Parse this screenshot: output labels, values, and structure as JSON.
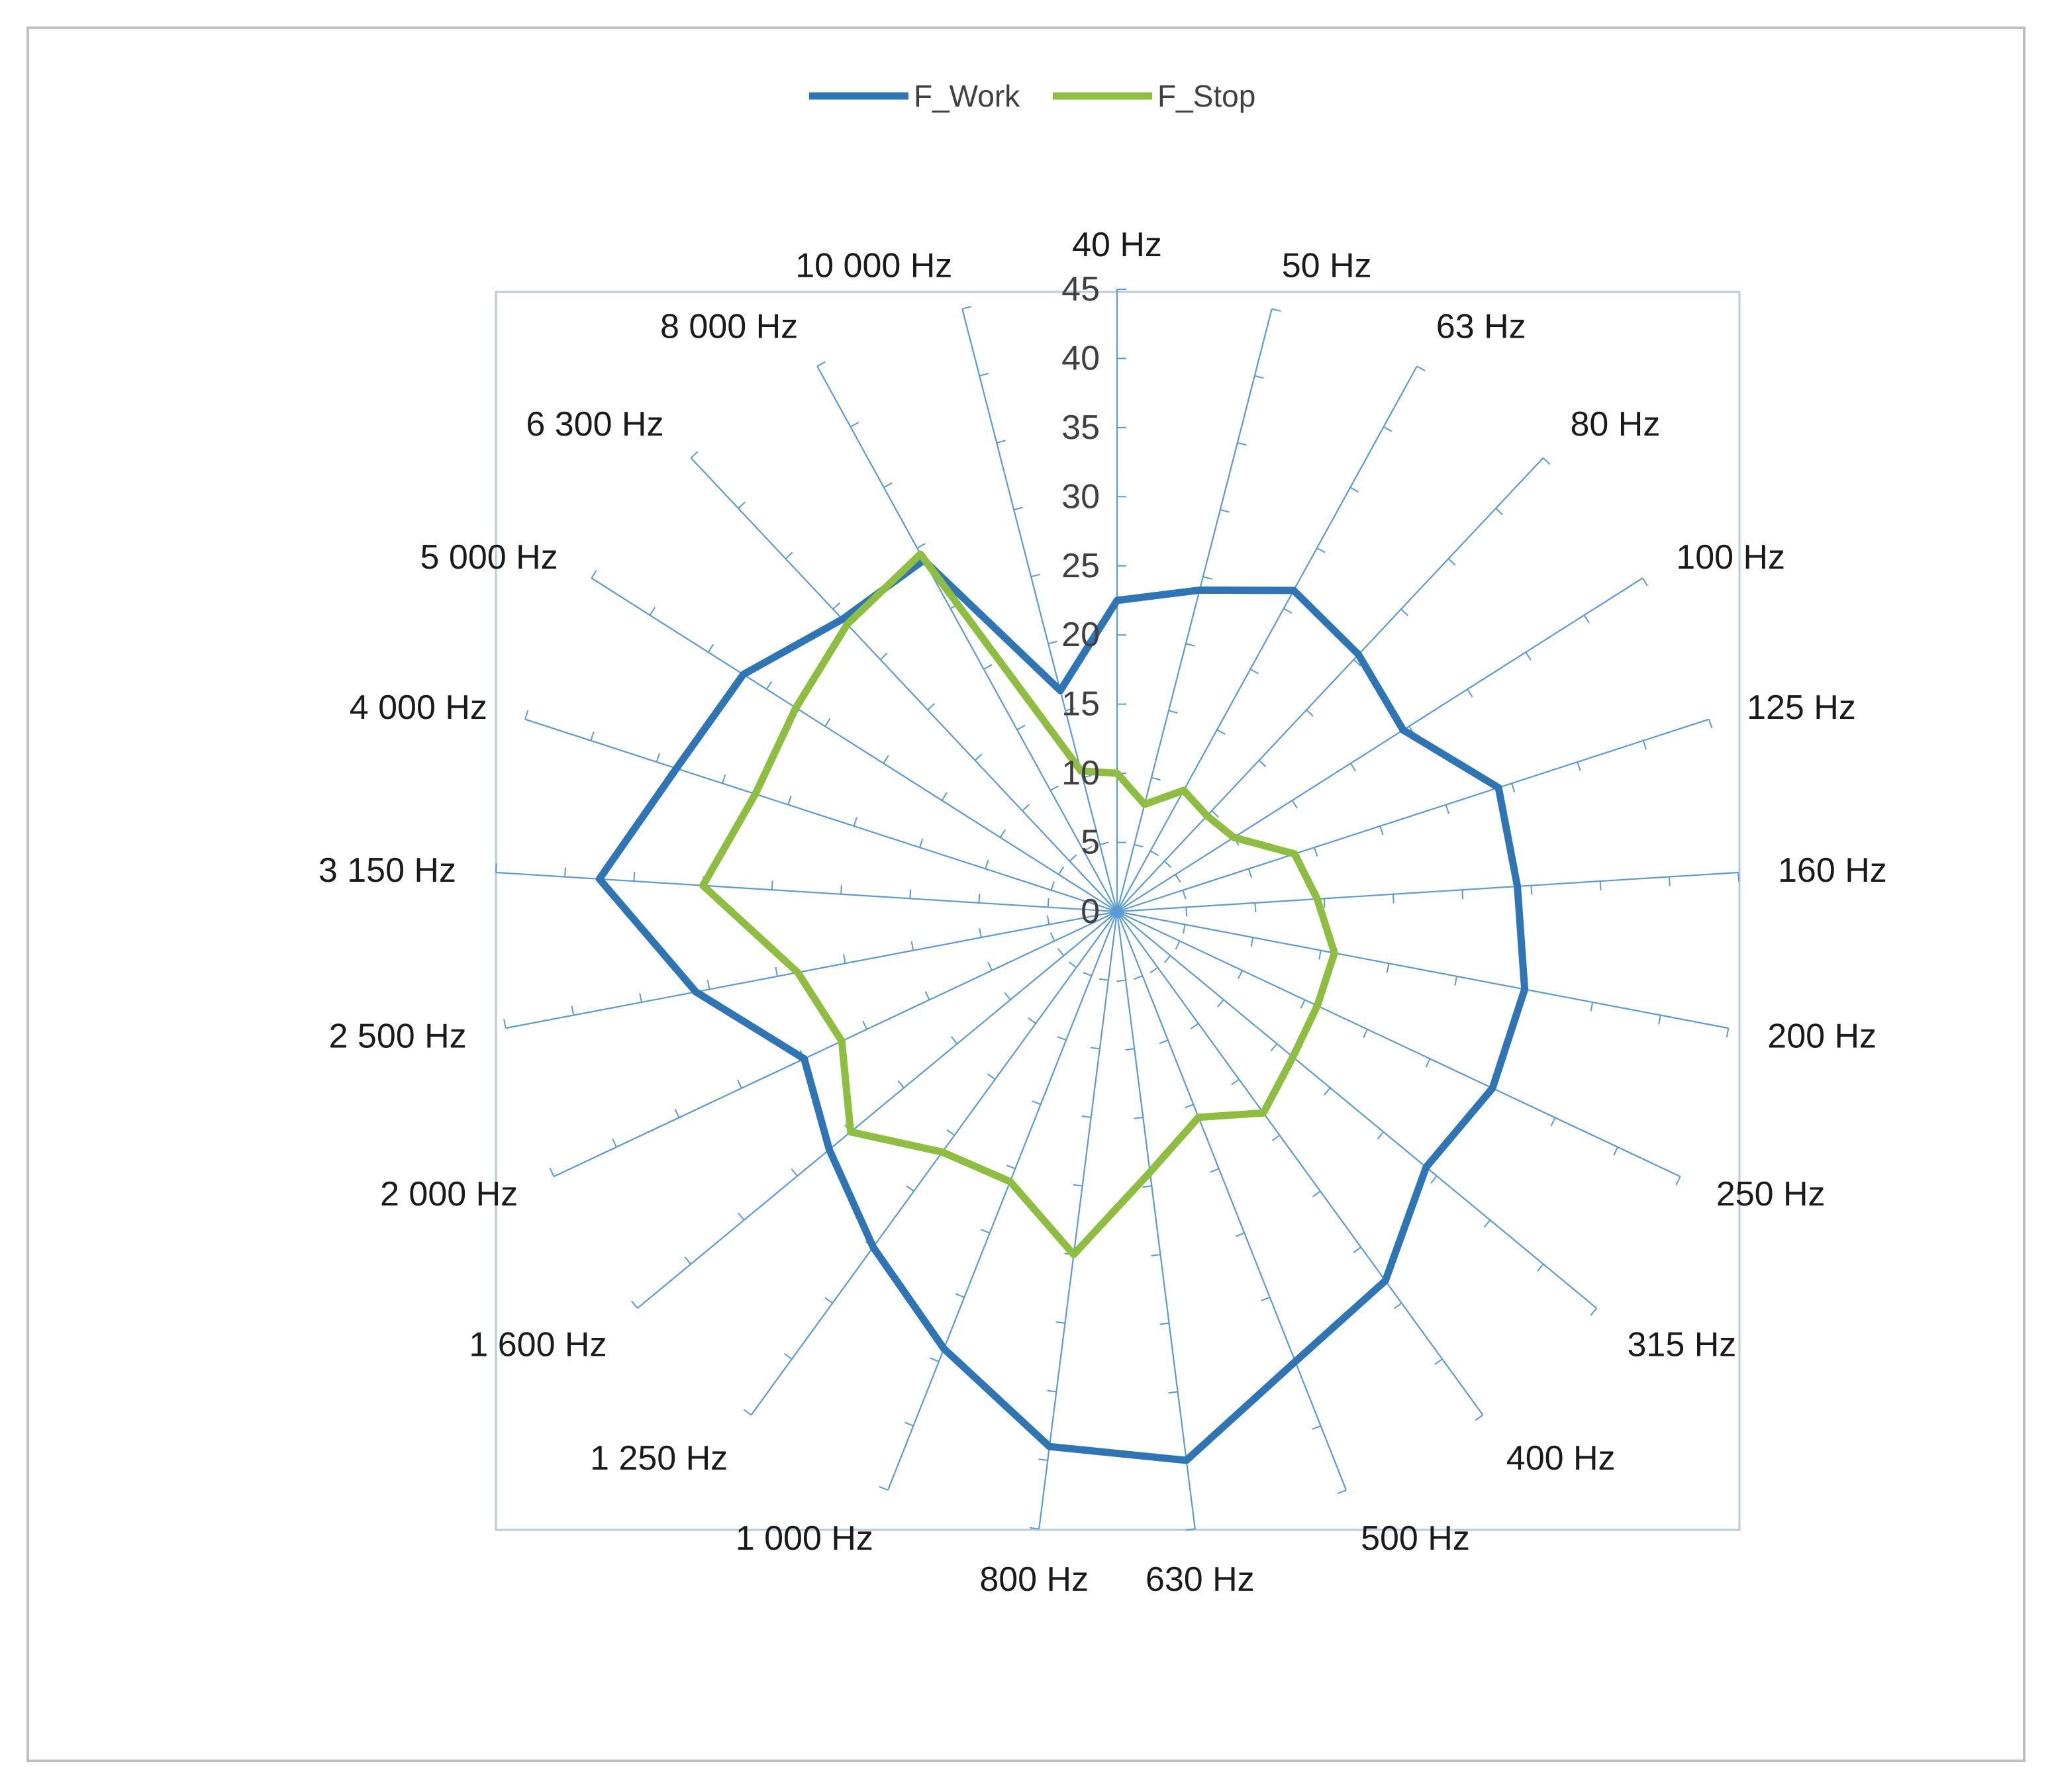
{
  "chart_data": {
    "type": "radar",
    "categories": [
      "40 Hz",
      "50 Hz",
      "63 Hz",
      "80 Hz",
      "100 Hz",
      "125 Hz",
      "160 Hz",
      "200 Hz",
      "250 Hz",
      "315 Hz",
      "400 Hz",
      "500 Hz",
      "630 Hz",
      "800 Hz",
      "1 000 Hz",
      "1 250 Hz",
      "1 600 Hz",
      "2 000 Hz",
      "2 500 Hz",
      "3 150 Hz",
      "4 000 Hz",
      "5 000 Hz",
      "6 300 Hz",
      "8 000 Hz",
      "10 000 Hz"
    ],
    "series": [
      {
        "name": "F_Work",
        "color": "#2E75B6",
        "values": [
          22.5,
          24,
          26.5,
          25.5,
          24.5,
          29,
          29,
          30,
          30,
          29,
          33,
          35,
          40,
          39,
          34,
          30,
          27,
          25,
          31,
          37.5,
          33.5,
          32,
          29,
          29,
          16.5
        ]
      },
      {
        "name": "F_Stop",
        "color": "#8DBE3F",
        "values": [
          10,
          8,
          10,
          9.5,
          10,
          13.5,
          14.5,
          16,
          16,
          16.5,
          18,
          16,
          19,
          25,
          21,
          21.5,
          25,
          22,
          23.5,
          30,
          27.5,
          27.5,
          28.5,
          29.5,
          10.5
        ]
      }
    ],
    "radial_axis": {
      "min": 0,
      "max": 45,
      "step": 5,
      "tick_labels": [
        "0",
        "5",
        "10",
        "15",
        "20",
        "25",
        "30",
        "35",
        "40",
        "45"
      ]
    },
    "gridlines": "spokes-only",
    "legend_position": "top"
  }
}
